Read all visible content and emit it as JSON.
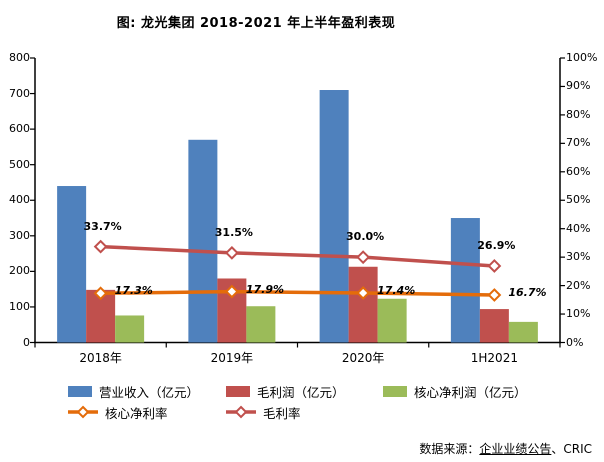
{
  "title": "图: 龙光集团 2018-2021 年上半年盈利表现",
  "source": {
    "prefix": "数据来源：",
    "underlined": "企业业绩公告",
    "suffix": "、CRIC"
  },
  "chart_data": {
    "type": "bar",
    "combo": "bar+line",
    "title": "图: 龙光集团 2018-2021 年上半年盈利表现",
    "categories": [
      "2018年",
      "2019年",
      "2020年",
      "1H2021"
    ],
    "bar_series": [
      {
        "name": "营业收入（亿元）",
        "color": "#4F81BD",
        "values": [
          440,
          570,
          710,
          350
        ]
      },
      {
        "name": "毛利润（亿元）",
        "color": "#C0504D",
        "values": [
          148,
          180,
          213,
          94
        ]
      },
      {
        "name": "核心净利润（亿元）",
        "color": "#9BBB59",
        "values": [
          76,
          102,
          123,
          58
        ]
      }
    ],
    "line_series": [
      {
        "name": "核心净利率",
        "color": "#E46C0A",
        "marker": "diamond",
        "values": [
          17.3,
          17.9,
          17.4,
          16.7
        ],
        "labels": [
          "17.3%",
          "17.9%",
          "17.4%",
          "16.7%"
        ],
        "label_style": "italic",
        "label_position": "right"
      },
      {
        "name": "毛利率",
        "color": "#C0504D",
        "marker": "diamond",
        "values": [
          33.7,
          31.5,
          30.0,
          26.9
        ],
        "labels": [
          "33.7%",
          "31.5%",
          "30.0%",
          "26.9%"
        ],
        "label_style": "normal",
        "label_position": "above"
      }
    ],
    "left_axis": {
      "min": 0,
      "max": 800,
      "step": 100
    },
    "right_axis": {
      "min": 0,
      "max": 100,
      "step": 10,
      "suffix": "%"
    },
    "grid": false,
    "legend_position": "bottom-left",
    "axis_color": "#000000"
  }
}
